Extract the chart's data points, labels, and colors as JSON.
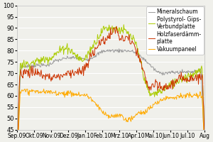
{
  "title": "",
  "xlabel": "",
  "ylabel": "",
  "ylim": [
    45,
    100
  ],
  "yticks": [
    45,
    50,
    55,
    60,
    65,
    70,
    75,
    80,
    85,
    90,
    95,
    100
  ],
  "xtick_labels": [
    "Sep.09",
    "Okt.09",
    "Nov.09",
    "Dez.09",
    "Jan.10",
    "Feb.10",
    "Mrz.10",
    "Apr.10",
    "Mai.10",
    "Jun.10",
    "Jul.10",
    "Aug"
  ],
  "legend_labels": [
    "Mineralschaum",
    "Polystyrol- Gips-\nVerbundplatte",
    "Holzfaserdämm-\nplatte",
    "Vakuumpaneel"
  ],
  "colors": {
    "mineralschaum": "#999999",
    "polystyrol": "#aacc00",
    "holzfaser": "#cc3300",
    "vakuum": "#ffaa00"
  },
  "background_color": "#f0f0eb",
  "grid_color": "#ffffff",
  "font_size": 6
}
